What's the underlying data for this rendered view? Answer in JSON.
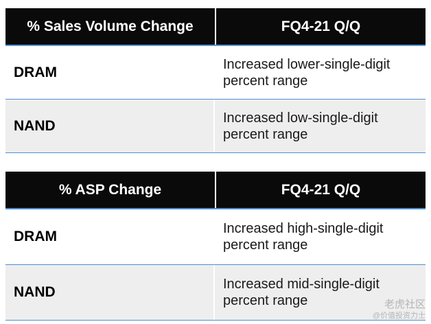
{
  "tables": [
    {
      "header": [
        "% Sales Volume Change",
        "FQ4-21 Q/Q"
      ],
      "rows": [
        {
          "product": "DRAM",
          "change": "Increased lower-single-digit percent range"
        },
        {
          "product": "NAND",
          "change": "Increased low-single-digit percent range"
        }
      ]
    },
    {
      "header": [
        "% ASP Change",
        "FQ4-21 Q/Q"
      ],
      "rows": [
        {
          "product": "DRAM",
          "change": "Increased high-single-digit percent range"
        },
        {
          "product": "NAND",
          "change": "Increased mid-single-digit percent range"
        }
      ]
    }
  ],
  "watermark": {
    "line1": "老虎社区",
    "line2": "@价值投资力士"
  },
  "colors": {
    "header_bg": "#0a0a0a",
    "accent_line": "#4f8fcf",
    "row_alt_bg": "#eeeeee"
  }
}
